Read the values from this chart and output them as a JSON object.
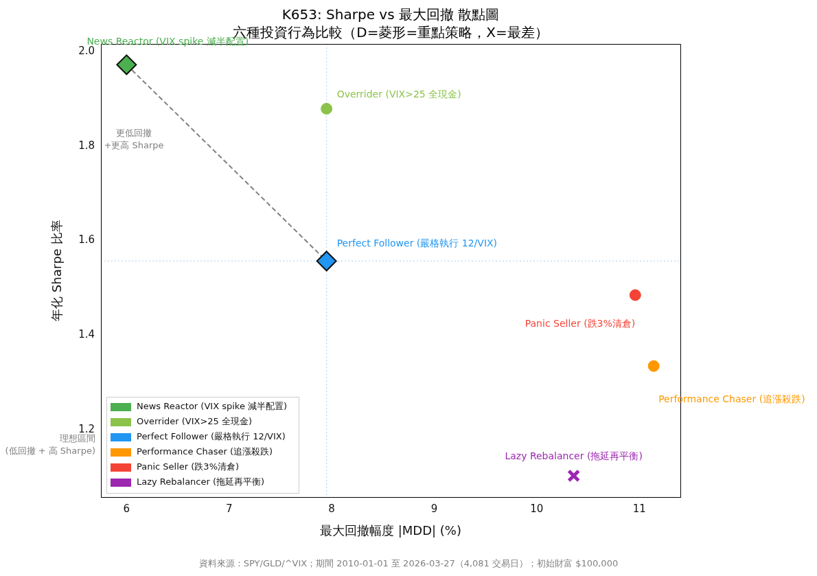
{
  "chart_data": {
    "type": "scatter",
    "title": "K653: Sharpe vs 最大回撤 散點圖",
    "subtitle": "六種投資行為比較（D=菱形=重點策略，X=最差）",
    "xlabel": "最大回撤幅度 |MDD| (%)",
    "ylabel": "年化 Sharpe 比率",
    "xlim": [
      5.75,
      11.4
    ],
    "ylim": [
      1.058,
      2.016
    ],
    "xticks": [
      6,
      7,
      8,
      9,
      10,
      11
    ],
    "yticks": [
      {
        "value": 1.2,
        "label": "1.2"
      },
      {
        "value": 1.4,
        "label": "1.4"
      },
      {
        "value": 1.6,
        "label": "1.6"
      },
      {
        "value": 1.8,
        "label": "1.8"
      },
      {
        "value": 2,
        "label": "2.0"
      }
    ],
    "grid": false,
    "legend": "bottom left",
    "series": [
      {
        "name": "News Reactor (VIX spike 減半配置)",
        "color": "#4caf50",
        "marker": "diamond",
        "x": [
          6.0
        ],
        "values": [
          1.972
        ]
      },
      {
        "name": "Overrider (VIX>25 全現金)",
        "color": "#8bc34a",
        "marker": "circle",
        "x": [
          7.95
        ],
        "values": [
          1.879
        ]
      },
      {
        "name": "Perfect Follower (嚴格執行 12/VIX)",
        "color": "#2196f3",
        "marker": "diamond",
        "x": [
          7.95
        ],
        "values": [
          1.557
        ]
      },
      {
        "name": "Performance Chaser (追漲殺跌)",
        "color": "#ff9800",
        "marker": "circle",
        "x": [
          11.14
        ],
        "values": [
          1.335
        ]
      },
      {
        "name": "Panic Seller (跌3%清倉)",
        "color": "#f44336",
        "marker": "circle",
        "x": [
          10.96
        ],
        "values": [
          1.485
        ]
      },
      {
        "name": "Lazy Rebalancer (拖延再平衡)",
        "color": "#9c27b0",
        "marker": "cross",
        "x": [
          10.36
        ],
        "values": [
          1.103
        ]
      },
      {
        "type": "line",
        "color": "#808080",
        "line_style": "dashed",
        "marker": "none",
        "x": [
          6.0,
          7.95
        ],
        "values": [
          1.972,
          1.557
        ]
      }
    ],
    "ref_lines": [
      {
        "axis": "x",
        "value": 7.95,
        "color": "#a9cfee",
        "line_style": "dotted"
      },
      {
        "axis": "y",
        "value": 1.557,
        "color": "#a9cfee",
        "line_style": "dotted"
      }
    ],
    "annotations": [
      {
        "text": "News Reactor (VIX spike 減半配置)",
        "x": 6.0,
        "y": 1.972
      },
      {
        "text": "Overrider (VIX>25 全現金)",
        "x": 7.95,
        "y": 1.879
      },
      {
        "text": "Perfect Follower (嚴格執行 12/VIX)",
        "x": 7.95,
        "y": 1.557
      },
      {
        "text": "Performance Chaser (追漲殺跌)",
        "x": 11.14,
        "y": 1.335
      },
      {
        "text": "Panic Seller (跌3%清倉)",
        "x": 10.96,
        "y": 1.485
      },
      {
        "text": "Lazy Rebalancer (拖延再平衡)",
        "x": 10.36,
        "y": 1.103
      },
      "更低回撤\n+更高 Sharpe",
      "理想區間\n(低回撤 + 高 Sharpe)",
      "資料來源：SPY/GLD/^VIX；期間 2010-01-01 至 2026-03-27（4,081 交易日）；初始財富 $100,000"
    ]
  }
}
